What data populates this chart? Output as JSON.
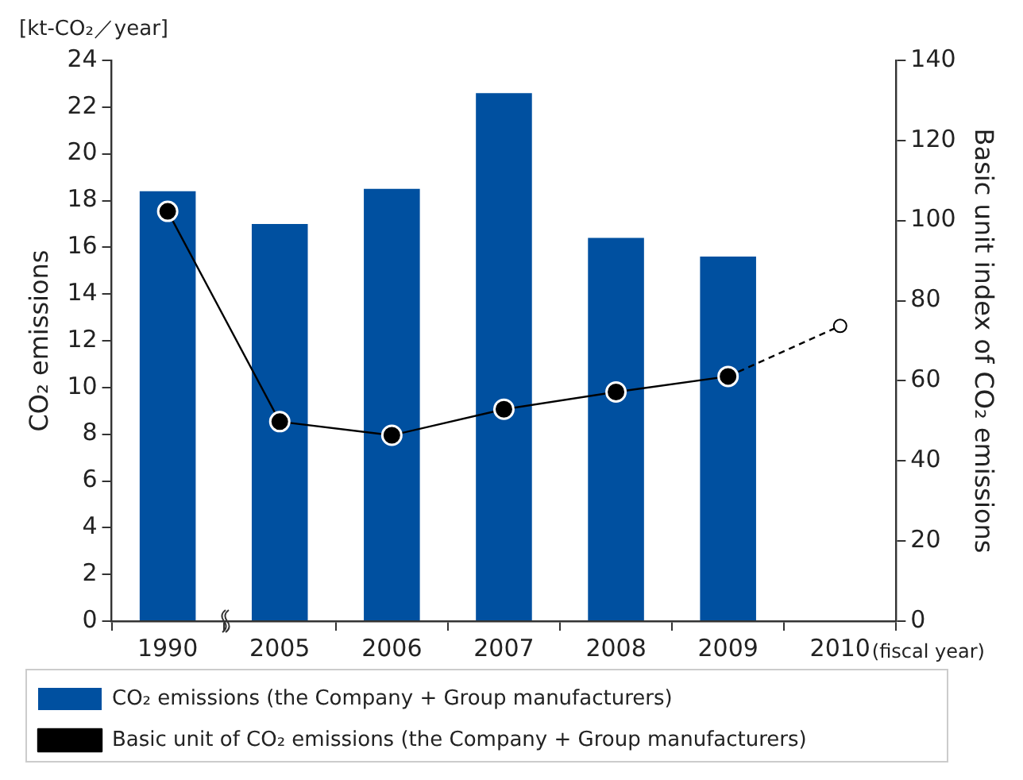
{
  "chart_data": {
    "type": "bar",
    "annotations": [
      "[kt-CO₂／year]"
    ],
    "xlabel": "(fiscal year)",
    "ylabel": "CO₂ emissions",
    "y2label": "Basic unit index of CO₂ emissions",
    "categories": [
      "1990",
      "2005",
      "2006",
      "2007",
      "2008",
      "2009",
      "2010"
    ],
    "series": [
      {
        "name": "CO₂ emissions (the Company + Group manufacturers)",
        "color": "#0050a0",
        "values": [
          18.4,
          17.0,
          18.5,
          22.6,
          16.4,
          15.6,
          null
        ]
      },
      {
        "name": "Basic unit of CO₂ emissions (the Company + Group manufacturers)",
        "type": "line",
        "axis": "y2",
        "color": "#000000",
        "marker": "circle",
        "line_style": "solid",
        "values": [
          102.3,
          49.8,
          46.4,
          52.9,
          57.2,
          61.1,
          null
        ]
      },
      {
        "type": "line",
        "axis": "y2",
        "color": "#000000",
        "marker": "circle",
        "line_style": "dashed",
        "values": [
          null,
          null,
          null,
          null,
          null,
          61.1,
          73.7
        ]
      }
    ],
    "ylim": [
      0,
      24
    ],
    "yticks": [
      0,
      2,
      4,
      6,
      8,
      10,
      12,
      14,
      16,
      18,
      20,
      22,
      24
    ],
    "y2lim": [
      0,
      140
    ],
    "y2ticks": [
      0,
      20,
      40,
      60,
      80,
      100,
      120,
      140
    ],
    "grid": false,
    "legend": "bottom"
  }
}
